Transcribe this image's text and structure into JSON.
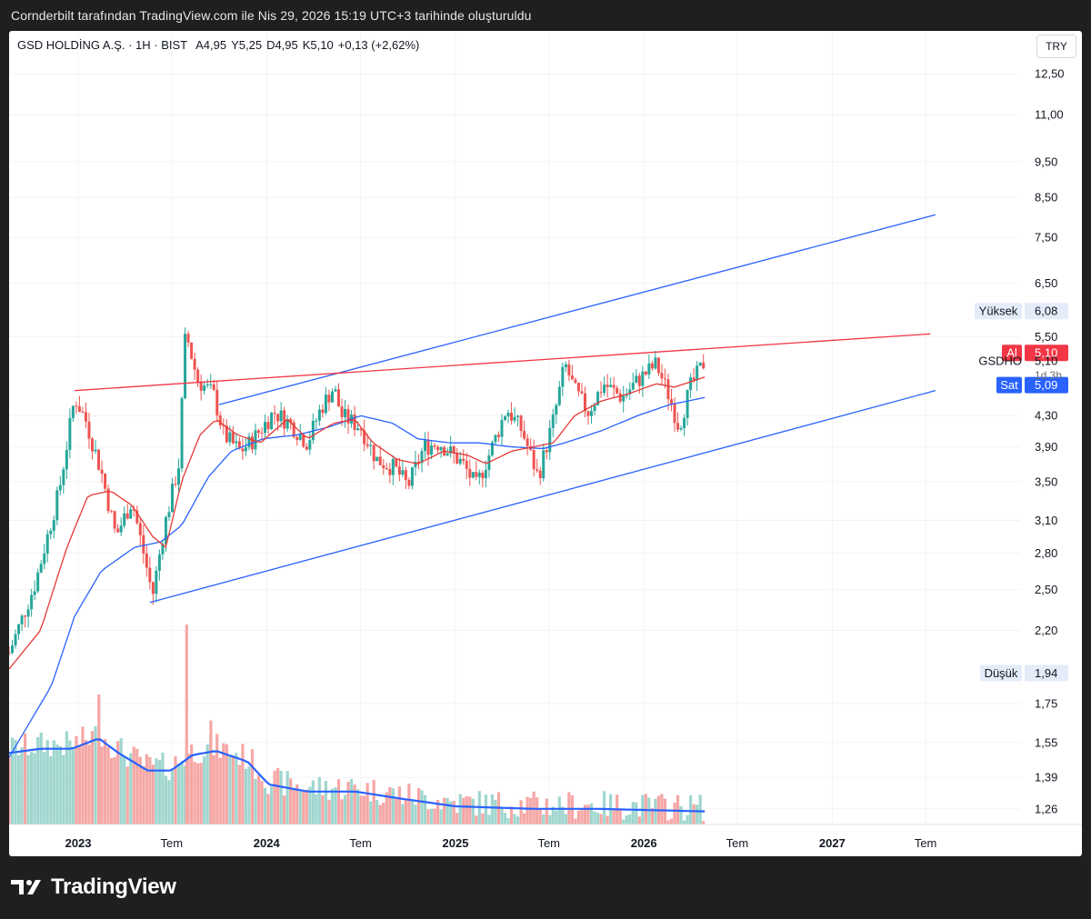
{
  "caption": "Cornderbilt tarafından TradingView.com ile Nis 29, 2026 15:19 UTC+3 tarihinde oluşturuldu",
  "header": {
    "symbol": "GSD HOLDİNG A.Ş. · 1H · BIST",
    "open": "A4,95",
    "high": "Y5,25",
    "low": "D4,95",
    "close": "K5,10",
    "change": "+0,13 (+2,62%)",
    "currency": "TRY"
  },
  "branding": {
    "logo_text": "TradingView"
  },
  "colors": {
    "up": "#26a69a",
    "down": "#ef5350",
    "ema_fast": "#e53935",
    "ema_slow": "#2962ff",
    "channel": "#2962ff",
    "resistance": "#f23645",
    "vol_up": "#9fd6cf",
    "vol_down": "#f5a7a5",
    "vol_ma": "#2962ff"
  },
  "chart_data": {
    "type": "candlestick",
    "scale": "log",
    "ylim": [
      1.2,
      13.2
    ],
    "y_ticks": [
      "12,50",
      "11,00",
      "9,50",
      "8,50",
      "7,50",
      "6,50",
      "5,50",
      "4,30",
      "3,90",
      "3,50",
      "3,10",
      "2,80",
      "2,50",
      "2,20",
      "1,75",
      "1,55",
      "1,39",
      "1,26"
    ],
    "y_tick_values": [
      12.5,
      11.0,
      9.5,
      8.5,
      7.5,
      6.5,
      5.5,
      4.3,
      3.9,
      3.5,
      3.1,
      2.8,
      2.5,
      2.2,
      1.75,
      1.55,
      1.39,
      1.26
    ],
    "x_labels": [
      "2023",
      "Tem",
      "2024",
      "Tem",
      "2025",
      "Tem",
      "2026",
      "Tem",
      "2027",
      "Tem"
    ],
    "x_label_bold": [
      true,
      false,
      true,
      false,
      true,
      false,
      true,
      false,
      true,
      false
    ],
    "x_label_dates": [
      "2023-01-01",
      "2023-07-01",
      "2024-01-01",
      "2024-07-01",
      "2025-01-01",
      "2025-07-01",
      "2026-01-01",
      "2026-07-01",
      "2027-01-01",
      "2027-07-01"
    ],
    "x_range": [
      "2022-08-20",
      "2027-12-31"
    ],
    "price_path": [
      [
        "2022-08-20",
        2.05
      ],
      [
        "2022-10-10",
        2.55
      ],
      [
        "2022-11-25",
        3.4
      ],
      [
        "2022-12-25",
        4.55
      ],
      [
        "2023-01-15",
        4.25
      ],
      [
        "2023-02-15",
        3.6
      ],
      [
        "2023-03-15",
        2.95
      ],
      [
        "2023-04-15",
        3.3
      ],
      [
        "2023-05-10",
        2.75
      ],
      [
        "2023-05-25",
        2.45
      ],
      [
        "2023-06-15",
        3.0
      ],
      [
        "2023-07-15",
        3.7
      ],
      [
        "2023-07-28",
        5.6
      ],
      [
        "2023-08-20",
        4.8
      ],
      [
        "2023-09-20",
        4.6
      ],
      [
        "2023-10-10",
        4.05
      ],
      [
        "2023-11-10",
        3.85
      ],
      [
        "2023-12-01",
        3.95
      ],
      [
        "2024-01-15",
        4.35
      ],
      [
        "2024-02-15",
        4.2
      ],
      [
        "2024-03-20",
        3.95
      ],
      [
        "2024-04-15",
        4.4
      ],
      [
        "2024-05-10",
        4.7
      ],
      [
        "2024-05-25",
        4.3
      ],
      [
        "2024-07-01",
        4.15
      ],
      [
        "2024-08-01",
        3.75
      ],
      [
        "2024-09-05",
        3.65
      ],
      [
        "2024-10-01",
        3.45
      ],
      [
        "2024-11-01",
        3.9
      ],
      [
        "2024-12-01",
        3.95
      ],
      [
        "2025-01-15",
        3.7
      ],
      [
        "2025-02-10",
        3.45
      ],
      [
        "2025-03-10",
        3.85
      ],
      [
        "2025-04-10",
        4.4
      ],
      [
        "2025-05-10",
        4.1
      ],
      [
        "2025-06-10",
        3.55
      ],
      [
        "2025-07-10",
        4.25
      ],
      [
        "2025-08-01",
        5.05
      ],
      [
        "2025-08-20",
        4.65
      ],
      [
        "2025-09-15",
        4.35
      ],
      [
        "2025-10-15",
        4.75
      ],
      [
        "2025-11-20",
        4.55
      ],
      [
        "2025-12-20",
        4.8
      ],
      [
        "2026-01-25",
        5.05
      ],
      [
        "2026-02-20",
        4.55
      ],
      [
        "2026-03-10",
        4.15
      ],
      [
        "2026-04-01",
        4.7
      ],
      [
        "2026-04-29",
        5.1
      ]
    ],
    "ema_fast": [
      [
        "2022-08-20",
        1.95
      ],
      [
        "2022-10-20",
        2.2
      ],
      [
        "2022-12-10",
        2.85
      ],
      [
        "2023-01-20",
        3.35
      ],
      [
        "2023-03-05",
        3.4
      ],
      [
        "2023-04-15",
        3.25
      ],
      [
        "2023-05-25",
        2.95
      ],
      [
        "2023-06-20",
        2.85
      ],
      [
        "2023-07-20",
        3.5
      ],
      [
        "2023-08-25",
        4.05
      ],
      [
        "2023-09-25",
        4.25
      ],
      [
        "2023-11-05",
        4.05
      ],
      [
        "2023-12-20",
        3.95
      ],
      [
        "2024-02-10",
        4.25
      ],
      [
        "2024-03-20",
        4.0
      ],
      [
        "2024-05-10",
        4.2
      ],
      [
        "2024-06-20",
        4.25
      ],
      [
        "2024-07-25",
        3.95
      ],
      [
        "2024-09-10",
        3.75
      ],
      [
        "2024-10-20",
        3.7
      ],
      [
        "2024-12-10",
        3.85
      ],
      [
        "2025-01-25",
        3.8
      ],
      [
        "2025-03-01",
        3.7
      ],
      [
        "2025-04-20",
        3.85
      ],
      [
        "2025-06-01",
        3.9
      ],
      [
        "2025-07-10",
        3.95
      ],
      [
        "2025-08-20",
        4.3
      ],
      [
        "2025-10-10",
        4.5
      ],
      [
        "2025-12-01",
        4.6
      ],
      [
        "2026-01-25",
        4.75
      ],
      [
        "2026-03-01",
        4.7
      ],
      [
        "2026-04-29",
        4.85
      ]
    ],
    "ema_slow": [
      [
        "2022-08-20",
        1.48
      ],
      [
        "2022-11-10",
        1.85
      ],
      [
        "2022-12-25",
        2.3
      ],
      [
        "2023-02-15",
        2.65
      ],
      [
        "2023-04-20",
        2.85
      ],
      [
        "2023-06-10",
        2.9
      ],
      [
        "2023-07-20",
        3.05
      ],
      [
        "2023-09-10",
        3.55
      ],
      [
        "2023-10-25",
        3.85
      ],
      [
        "2023-12-25",
        4.0
      ],
      [
        "2024-03-01",
        4.05
      ],
      [
        "2024-05-01",
        4.15
      ],
      [
        "2024-07-01",
        4.3
      ],
      [
        "2024-09-01",
        4.2
      ],
      [
        "2024-10-20",
        4.0
      ],
      [
        "2024-12-20",
        3.95
      ],
      [
        "2025-02-15",
        3.95
      ],
      [
        "2025-04-20",
        3.9
      ],
      [
        "2025-06-20",
        3.88
      ],
      [
        "2025-08-01",
        3.95
      ],
      [
        "2025-10-10",
        4.1
      ],
      [
        "2025-12-20",
        4.3
      ],
      [
        "2026-02-20",
        4.45
      ],
      [
        "2026-04-29",
        4.55
      ]
    ],
    "channel_upper": [
      [
        "2023-10-01",
        4.45
      ],
      [
        "2027-07-20",
        8.05
      ]
    ],
    "channel_lower": [
      [
        "2023-05-20",
        2.4
      ],
      [
        "2027-07-20",
        4.65
      ]
    ],
    "resistance_line": [
      [
        "2022-12-25",
        4.65
      ],
      [
        "2027-07-10",
        5.55
      ]
    ],
    "volume_ma": [
      [
        "2022-08-20",
        1.5
      ],
      [
        "2022-10-20",
        1.52
      ],
      [
        "2022-12-20",
        1.52
      ],
      [
        "2023-02-10",
        1.57
      ],
      [
        "2023-03-20",
        1.5
      ],
      [
        "2023-05-15",
        1.42
      ],
      [
        "2023-06-30",
        1.42
      ],
      [
        "2023-08-10",
        1.49
      ],
      [
        "2023-09-25",
        1.51
      ],
      [
        "2023-11-25",
        1.46
      ],
      [
        "2024-01-05",
        1.36
      ],
      [
        "2024-03-20",
        1.33
      ],
      [
        "2024-06-20",
        1.33
      ],
      [
        "2024-09-20",
        1.3
      ],
      [
        "2025-01-01",
        1.27
      ],
      [
        "2025-06-01",
        1.26
      ],
      [
        "2025-10-01",
        1.26
      ],
      [
        "2026-04-29",
        1.25
      ]
    ],
    "volume_spikes": [
      [
        "2023-07-30",
        2.24
      ],
      [
        "2023-02-10",
        1.8
      ],
      [
        "2023-09-15",
        1.66
      ]
    ],
    "labels": {
      "high_tag": "Yüksek",
      "high_value": "6,08",
      "high_price": 5.96,
      "low_tag": "Düşük",
      "low_value": "1,94",
      "low_price": 1.925,
      "ask_tag": "Al",
      "ask_value": "5,10",
      "ask_price": 5.23,
      "ticker_tag": "GSDHO",
      "ticker_value": "5,10",
      "ticker_price": 5.1,
      "countdown": "1d 3h",
      "bid_tag": "Sat",
      "bid_value": "5,09",
      "bid_price": 4.73
    }
  }
}
